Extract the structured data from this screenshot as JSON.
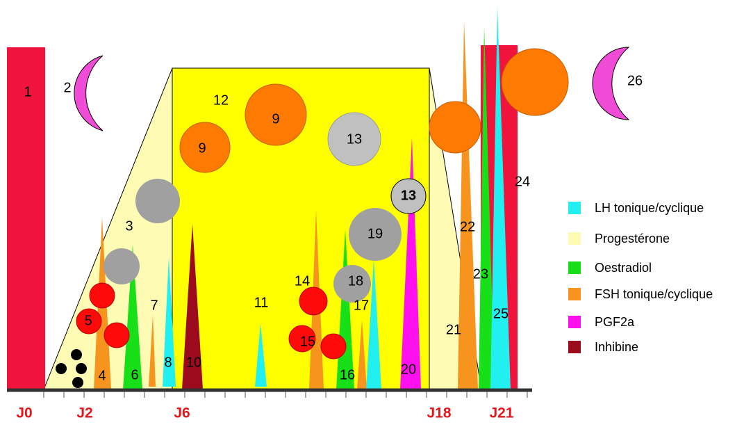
{
  "labels": [
    "1",
    "2",
    "3",
    "4",
    "5",
    "6",
    "7",
    "8",
    "9",
    "9",
    "10",
    "11",
    "12",
    "13",
    "13",
    "14",
    "15",
    "16",
    "17",
    "18",
    "19",
    "20",
    "21",
    "22",
    "23",
    "24",
    "25",
    "26"
  ],
  "axis": {
    "labels": [
      "J0",
      "J2",
      "J6",
      "J18",
      "J21"
    ]
  },
  "legend": {
    "items": [
      "LH tonique/cyclique",
      "Progestérone",
      "Oestradiol",
      "FSH tonique/cyclique",
      "PGF2a",
      "Inhibine"
    ]
  }
}
